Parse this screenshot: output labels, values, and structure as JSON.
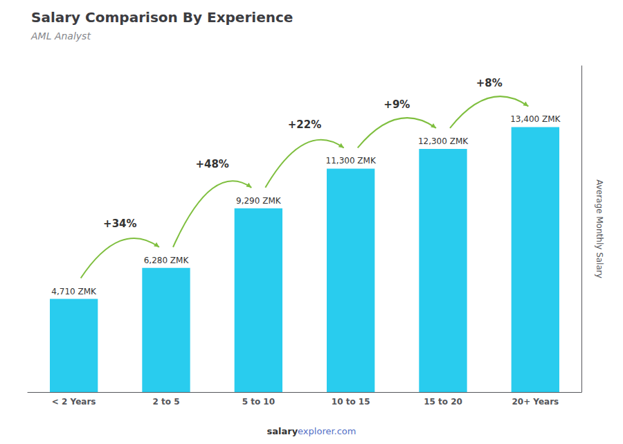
{
  "chart_data": {
    "type": "bar",
    "title": "Salary Comparison By Experience",
    "subtitle": "AML Analyst",
    "categories": [
      "< 2 Years",
      "2 to 5",
      "5 to 10",
      "10 to 15",
      "15 to 20",
      "20+ Years"
    ],
    "values": [
      4710,
      6280,
      9290,
      11300,
      12300,
      13400
    ],
    "value_labels": [
      "4,710 ZMK",
      "6,280 ZMK",
      "9,290 ZMK",
      "11,300 ZMK",
      "12,300 ZMK",
      "13,400 ZMK"
    ],
    "data_labels": true,
    "color": "#29ccee",
    "ylabel": "Average Monthly Salary",
    "ylim": [
      0,
      16500
    ],
    "tick_labels": "x",
    "grid": false,
    "annotations": [
      {
        "text": "+34%",
        "between": [
          "< 2 Years",
          "2 to 5"
        ]
      },
      {
        "text": "+48%",
        "between": [
          "2 to 5",
          "5 to 10"
        ]
      },
      {
        "text": "+22%",
        "between": [
          "5 to 10",
          "10 to 15"
        ]
      },
      {
        "text": "+9%",
        "between": [
          "10 to 15",
          "15 to 20"
        ]
      },
      {
        "text": "+8%",
        "between": [
          "15 to 20",
          "20+ Years"
        ]
      }
    ],
    "footer": [
      "salary",
      "explorer.com"
    ]
  }
}
